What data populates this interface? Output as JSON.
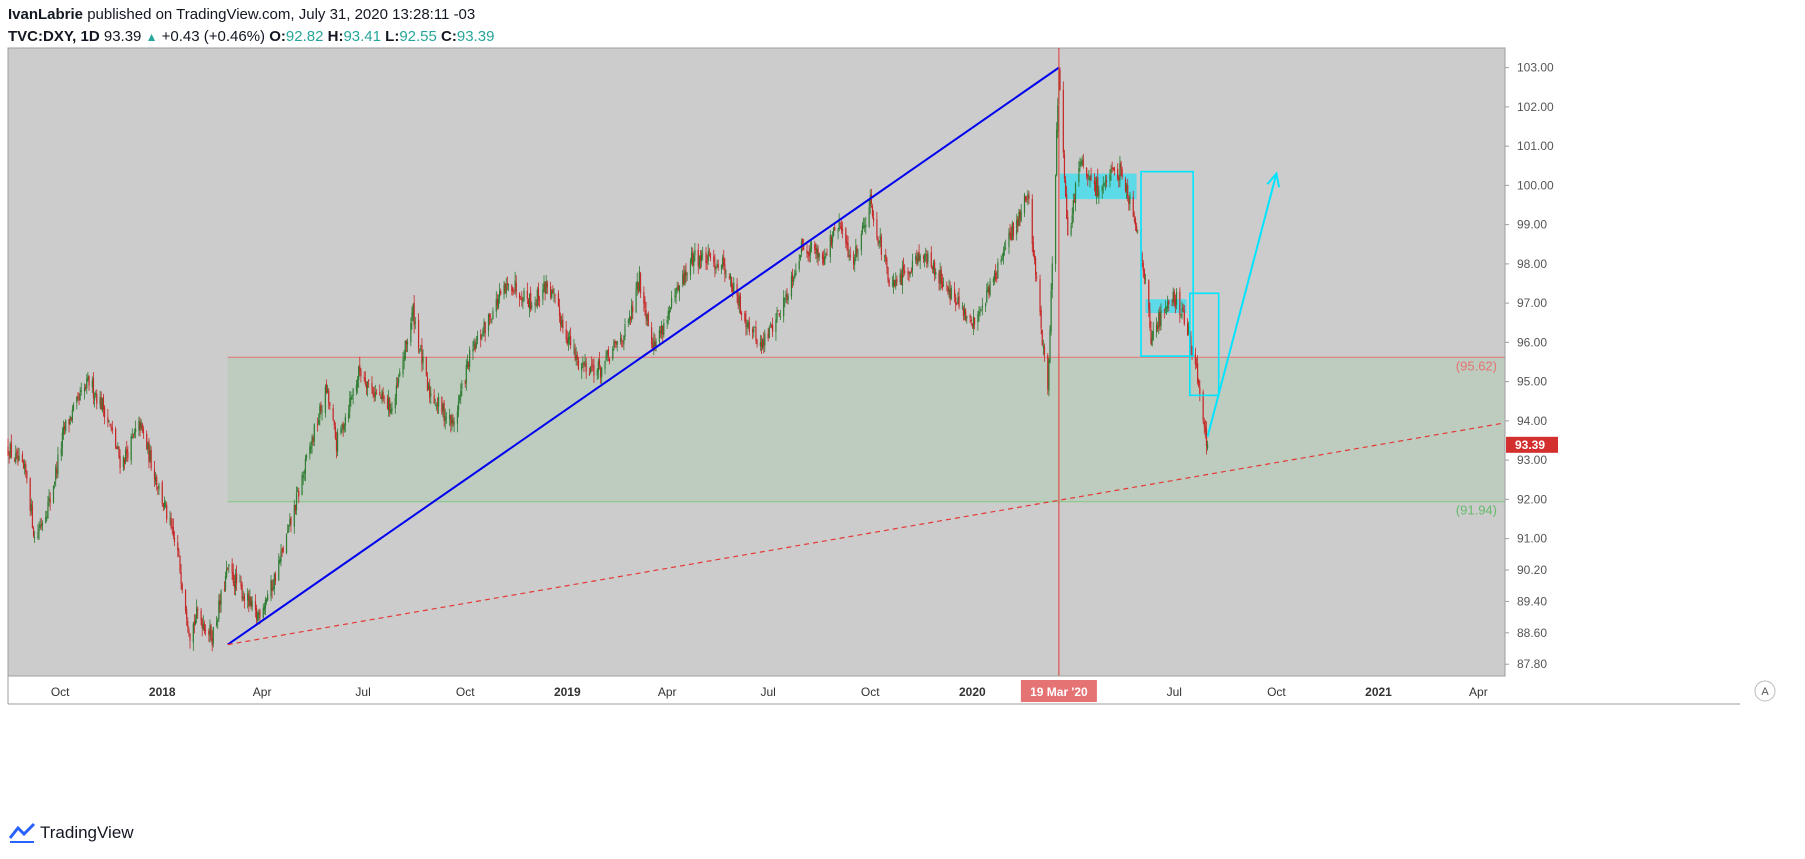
{
  "header": {
    "author": "IvanLabrie",
    "published_text": " published on TradingView.com, July 31, 2020 13:28:11 -03",
    "symbol": "TVC:DXY, 1D",
    "last": "93.39",
    "change": "+0.43 (+0.46%)",
    "o_label": "O:",
    "o": "92.82",
    "h_label": "H:",
    "h": "93.41",
    "l_label": "L:",
    "l": "92.55",
    "c_label": "C:",
    "c": "93.39"
  },
  "footer": {
    "brand": "TradingView"
  },
  "colors": {
    "plot_bg": "#cccccc",
    "up": "#2e7d32",
    "down": "#c62828",
    "blue_line": "#0000ee",
    "cyan": "#00e5ff",
    "level_red": "#e57373",
    "level_green": "#81c784",
    "price_tag": "#d32f2f"
  },
  "chart_data": {
    "type": "candlestick",
    "symbol": "TVC:DXY",
    "interval": "1D",
    "x_range": [
      "2017-08-15",
      "2021-04-25"
    ],
    "y_range": [
      87.5,
      103.5
    ],
    "y_ticks": [
      "87.80",
      "88.60",
      "89.40",
      "90.20",
      "91.00",
      "92.00",
      "93.00",
      "94.00",
      "95.00",
      "96.00",
      "97.00",
      "98.00",
      "99.00",
      "100.00",
      "101.00",
      "102.00",
      "103.00"
    ],
    "x_ticks": [
      {
        "date": "2017-10-01",
        "label": "Oct"
      },
      {
        "date": "2018-01-01",
        "label": "2018"
      },
      {
        "date": "2018-04-01",
        "label": "Apr"
      },
      {
        "date": "2018-07-01",
        "label": "Jul"
      },
      {
        "date": "2018-10-01",
        "label": "Oct"
      },
      {
        "date": "2019-01-01",
        "label": "2019"
      },
      {
        "date": "2019-04-01",
        "label": "Apr"
      },
      {
        "date": "2019-07-01",
        "label": "Jul"
      },
      {
        "date": "2019-10-01",
        "label": "Oct"
      },
      {
        "date": "2020-01-01",
        "label": "2020"
      },
      {
        "date": "2020-04-01",
        "label": "Apr"
      },
      {
        "date": "2020-07-01",
        "label": "Jul"
      },
      {
        "date": "2020-10-01",
        "label": "Oct"
      },
      {
        "date": "2021-01-01",
        "label": "2021"
      },
      {
        "date": "2021-04-01",
        "label": "Apr"
      }
    ],
    "price_path": [
      [
        "2017-08-15",
        93.3
      ],
      [
        "2017-09-01",
        92.6
      ],
      [
        "2017-09-08",
        91.0
      ],
      [
        "2017-09-22",
        92.0
      ],
      [
        "2017-10-05",
        93.8
      ],
      [
        "2017-10-27",
        95.0
      ],
      [
        "2017-11-10",
        94.3
      ],
      [
        "2017-11-25",
        92.9
      ],
      [
        "2017-12-12",
        93.9
      ],
      [
        "2017-12-29",
        92.3
      ],
      [
        "2018-01-15",
        90.6
      ],
      [
        "2018-01-26",
        88.6
      ],
      [
        "2018-02-02",
        89.1
      ],
      [
        "2018-02-15",
        88.5
      ],
      [
        "2018-03-01",
        90.2
      ],
      [
        "2018-03-15",
        89.6
      ],
      [
        "2018-03-27",
        89.0
      ],
      [
        "2018-04-10",
        89.8
      ],
      [
        "2018-04-25",
        91.2
      ],
      [
        "2018-05-15",
        93.4
      ],
      [
        "2018-05-29",
        94.8
      ],
      [
        "2018-06-07",
        93.4
      ],
      [
        "2018-06-28",
        95.3
      ],
      [
        "2018-07-12",
        94.7
      ],
      [
        "2018-07-28",
        94.3
      ],
      [
        "2018-08-15",
        96.8
      ],
      [
        "2018-08-28",
        94.8
      ],
      [
        "2018-09-20",
        93.9
      ],
      [
        "2018-10-05",
        95.6
      ],
      [
        "2018-10-31",
        97.1
      ],
      [
        "2018-11-12",
        97.5
      ],
      [
        "2018-12-01",
        97.0
      ],
      [
        "2018-12-14",
        97.5
      ],
      [
        "2019-01-10",
        95.5
      ],
      [
        "2019-01-31",
        95.3
      ],
      [
        "2019-02-25",
        96.4
      ],
      [
        "2019-03-07",
        97.6
      ],
      [
        "2019-03-20",
        95.9
      ],
      [
        "2019-04-25",
        98.2
      ],
      [
        "2019-05-22",
        98.0
      ],
      [
        "2019-06-07",
        96.8
      ],
      [
        "2019-06-25",
        95.9
      ],
      [
        "2019-07-15",
        97.0
      ],
      [
        "2019-08-01",
        98.5
      ],
      [
        "2019-08-20",
        98.2
      ],
      [
        "2019-09-03",
        99.0
      ],
      [
        "2019-09-15",
        98.0
      ],
      [
        "2019-10-01",
        99.6
      ],
      [
        "2019-10-20",
        97.3
      ],
      [
        "2019-11-15",
        98.3
      ],
      [
        "2019-12-05",
        97.6
      ],
      [
        "2019-12-31",
        96.4
      ],
      [
        "2020-01-20",
        97.6
      ],
      [
        "2020-02-20",
        99.8
      ],
      [
        "2020-03-09",
        94.7
      ],
      [
        "2020-03-19",
        102.9
      ],
      [
        "2020-03-27",
        98.5
      ],
      [
        "2020-04-06",
        100.6
      ],
      [
        "2020-04-20",
        99.9
      ],
      [
        "2020-05-15",
        100.4
      ],
      [
        "2020-06-01",
        98.5
      ],
      [
        "2020-06-10",
        96.1
      ],
      [
        "2020-06-24",
        97.0
      ],
      [
        "2020-07-01",
        97.2
      ],
      [
        "2020-07-10",
        96.6
      ],
      [
        "2020-07-20",
        95.6
      ],
      [
        "2020-07-27",
        93.8
      ],
      [
        "2020-07-31",
        93.39
      ]
    ],
    "annotations": {
      "range_box": {
        "x_start": "2018-03-01",
        "price_top": 95.62,
        "price_bottom": 91.94
      },
      "level_high_label": "(95.62)",
      "level_low_label": "(91.94)",
      "trendline": {
        "from": [
          "2018-03-01",
          88.3
        ],
        "to": [
          "2020-03-19",
          103.0
        ]
      },
      "support_line": {
        "from": [
          "2018-03-01",
          88.3
        ],
        "to": [
          "2021-04-25",
          93.95
        ]
      },
      "vertical_marker_date": "2020-03-19",
      "vertical_marker_label": "19 Mar '20",
      "cyan_box_1": {
        "x1": "2020-06-01",
        "x2": "2020-07-18",
        "top": 100.35,
        "bottom": 95.65
      },
      "cyan_box_2": {
        "x1": "2020-07-15",
        "x2": "2020-08-10",
        "top": 97.25,
        "bottom": 94.65
      },
      "cyan_fill_1": {
        "x1": "2020-03-20",
        "x2": "2020-05-28",
        "top": 100.3,
        "bottom": 99.65
      },
      "cyan_fill_2": {
        "x1": "2020-06-05",
        "x2": "2020-07-12",
        "top": 97.1,
        "bottom": 96.75
      },
      "cyan_arrow": {
        "from": [
          "2020-07-31",
          93.6
        ],
        "to": [
          "2020-10-01",
          100.3
        ]
      },
      "last_price_label": "93.39"
    },
    "axis_badge": "A"
  }
}
